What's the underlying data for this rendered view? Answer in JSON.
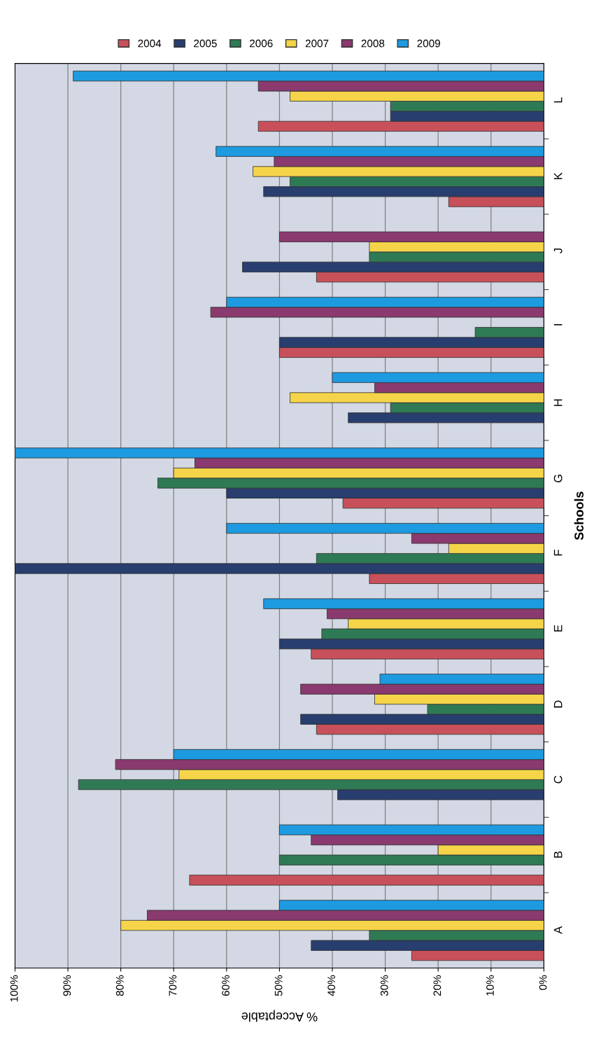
{
  "chart_data": {
    "type": "bar",
    "orientation": "horizontal",
    "xlabel": "% Acceptable",
    "ylabel": "Schools",
    "categories": [
      "L",
      "K",
      "J",
      "I",
      "H",
      "G",
      "F",
      "E",
      "D",
      "C",
      "B",
      "A"
    ],
    "series": [
      {
        "name": "2004",
        "color": "#c8505a",
        "values": [
          54,
          18,
          43,
          50,
          null,
          38,
          33,
          44,
          43,
          null,
          67,
          25
        ]
      },
      {
        "name": "2005",
        "color": "#283e6e",
        "values": [
          29,
          53,
          57,
          50,
          37,
          60,
          100,
          50,
          46,
          39,
          null,
          44
        ]
      },
      {
        "name": "2006",
        "color": "#2e7a55",
        "values": [
          29,
          48,
          33,
          13,
          29,
          73,
          43,
          42,
          22,
          88,
          50,
          33
        ]
      },
      {
        "name": "2007",
        "color": "#f5d44a",
        "values": [
          48,
          55,
          33,
          null,
          48,
          70,
          18,
          37,
          32,
          69,
          20,
          80
        ]
      },
      {
        "name": "2008",
        "color": "#8a3a6e",
        "values": [
          54,
          51,
          50,
          63,
          32,
          66,
          25,
          41,
          46,
          81,
          44,
          75
        ]
      },
      {
        "name": "2009",
        "color": "#1e9ae0",
        "values": [
          89,
          62,
          null,
          60,
          40,
          100,
          60,
          53,
          31,
          70,
          50,
          50
        ]
      }
    ],
    "xlim": [
      100,
      0
    ],
    "xticks": [
      {
        "value": 100,
        "label": "100%"
      },
      {
        "value": 90,
        "label": "90%"
      },
      {
        "value": 80,
        "label": "80%"
      },
      {
        "value": 70,
        "label": "70%"
      },
      {
        "value": 60,
        "label": "60%"
      },
      {
        "value": 50,
        "label": "50%"
      },
      {
        "value": 40,
        "label": "40%"
      },
      {
        "value": 30,
        "label": "30%"
      },
      {
        "value": 20,
        "label": "20%"
      },
      {
        "value": 10,
        "label": "10%"
      },
      {
        "value": 0,
        "label": "0%"
      }
    ],
    "grid": "x",
    "legend": "top"
  }
}
